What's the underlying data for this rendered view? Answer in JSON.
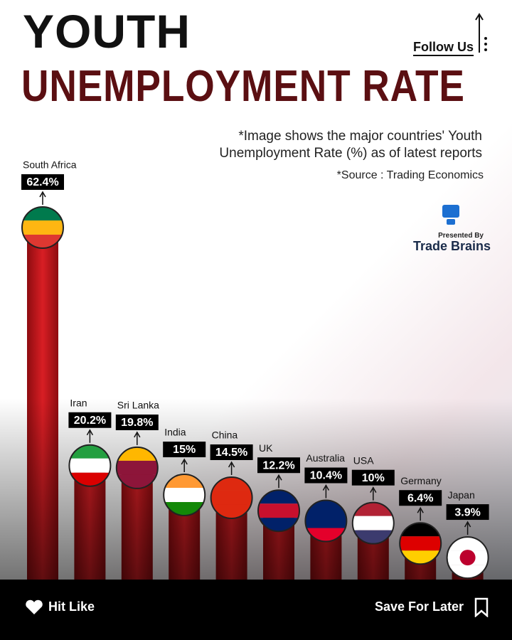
{
  "chart_data": {
    "type": "bar",
    "title": "YOUTH",
    "title_line2": "UNEMPLOYMENT RATE",
    "subtitle": "*Image shows the major countries' Youth Unemployment Rate (%) as of latest reports",
    "source": "*Source : Trading Economics",
    "categories": [
      "South Africa",
      "Iran",
      "Sri Lanka",
      "India",
      "China",
      "UK",
      "Australia",
      "USA",
      "Germany",
      "Japan"
    ],
    "values": [
      62.4,
      20.2,
      19.8,
      15,
      14.5,
      12.2,
      10.4,
      10,
      6.4,
      3.9
    ],
    "value_labels": [
      "62.4%",
      "20.2%",
      "19.8%",
      "15%",
      "14.5%",
      "12.2%",
      "10.4%",
      "10%",
      "6.4%",
      "3.9%"
    ],
    "color": "#c0161b"
  },
  "header": {
    "follow": "Follow Us",
    "presented_by": "Presented By",
    "brand": "Trade Brains"
  },
  "footer": {
    "like": "Hit Like",
    "save": "Save For Later"
  }
}
